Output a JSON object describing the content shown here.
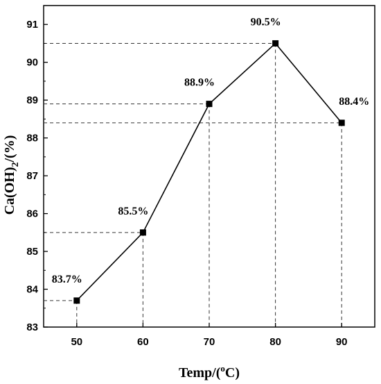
{
  "chart_data": {
    "type": "line",
    "x": [
      50,
      60,
      70,
      80,
      90
    ],
    "y": [
      83.7,
      85.5,
      88.9,
      90.5,
      88.4
    ],
    "data_labels": [
      "83.7%",
      "85.5%",
      "88.9%",
      "90.5%",
      "88.4%"
    ],
    "x_ticks": [
      "50",
      "60",
      "70",
      "80",
      "90"
    ],
    "y_ticks": [
      "83",
      "84",
      "85",
      "86",
      "87",
      "88",
      "89",
      "90",
      "91"
    ],
    "xlim": [
      45,
      95
    ],
    "ylim": [
      83,
      91.5
    ],
    "xlabel": {
      "main": "Temp/(",
      "sup": "o",
      "end": "C)"
    },
    "ylabel": {
      "main": "Ca(OH)",
      "sub": "2",
      "end": "/(%)"
    },
    "grid": false,
    "marker": "square",
    "guide_lines": "dashed"
  }
}
